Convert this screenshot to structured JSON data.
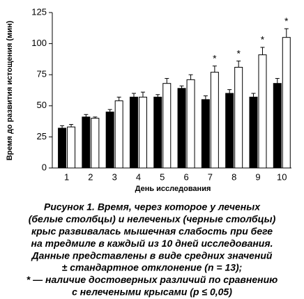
{
  "chart_data": {
    "type": "bar",
    "ylabel": "Время до развития истощения (мин)",
    "xlabel": "День исследования",
    "categories": [
      "1",
      "2",
      "3",
      "4",
      "5",
      "6",
      "7",
      "8",
      "9",
      "10"
    ],
    "series": [
      {
        "color": "#000000",
        "values": [
          32,
          41,
          45,
          57,
          57,
          64,
          55,
          60,
          57,
          68
        ],
        "errors": [
          2,
          2,
          2,
          3,
          2,
          2,
          3,
          3,
          3,
          4
        ]
      },
      {
        "color": "#ffffff",
        "values": [
          33,
          40,
          54,
          57,
          68,
          71,
          77,
          81,
          91,
          105
        ],
        "errors": [
          2,
          1,
          3,
          4,
          4,
          4,
          5,
          5,
          6,
          7
        ],
        "markers": [
          null,
          null,
          null,
          null,
          null,
          null,
          "*",
          "*",
          "*",
          "*"
        ]
      }
    ],
    "ylim": [
      0,
      125
    ],
    "yticks": [
      0,
      25,
      50,
      75,
      100,
      125
    ],
    "caption": [
      "Рисунок 1. Время, через которое у леченых",
      "(белые столбцы) и нелеченых (черные столбцы)",
      "крыс развивалась мышечная слабость при беге",
      "на тредмиле в каждый из 10 дней исследования.",
      "Данные представлены в виде средних значений",
      "± стандартное отклонение (n = 13);",
      "* — наличие достоверных различий по сравнению",
      "с нелечеными крысами (p ≤ 0,05)"
    ]
  }
}
